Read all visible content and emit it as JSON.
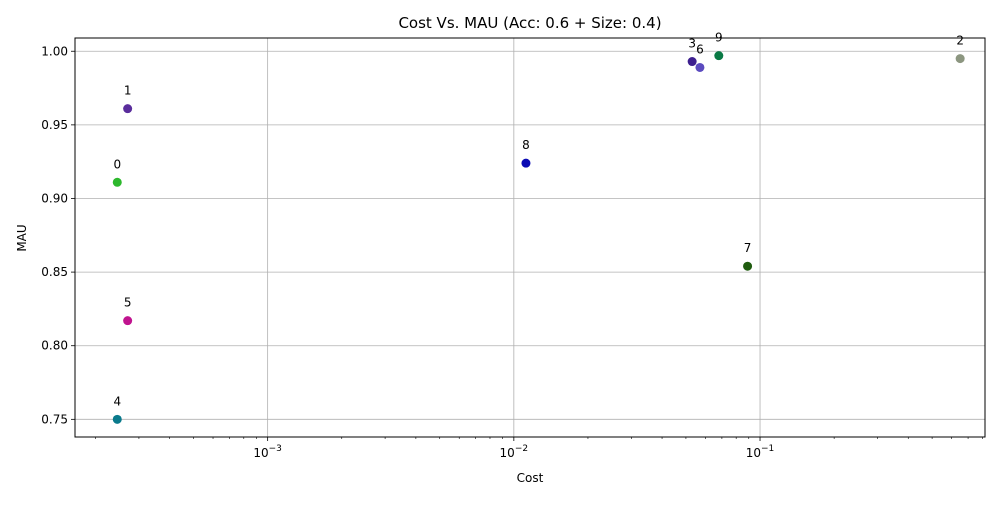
{
  "chart_data": {
    "type": "scatter",
    "title": "Cost Vs. MAU (Acc: 0.6 + Size: 0.4)",
    "xlabel": "Cost",
    "ylabel": "MAU",
    "x_scale": "log",
    "xlim": [
      0.000165,
      0.82
    ],
    "ylim": [
      0.738,
      1.009
    ],
    "grid": true,
    "x_ticks": [
      {
        "value": 0.001,
        "base": "10",
        "exp": "−3"
      },
      {
        "value": 0.01,
        "base": "10",
        "exp": "−2"
      },
      {
        "value": 0.1,
        "base": "10",
        "exp": "−1"
      }
    ],
    "y_ticks": [
      {
        "value": 0.75,
        "label": "0.75"
      },
      {
        "value": 0.8,
        "label": "0.80"
      },
      {
        "value": 0.85,
        "label": "0.85"
      },
      {
        "value": 0.9,
        "label": "0.90"
      },
      {
        "value": 0.95,
        "label": "0.95"
      },
      {
        "value": 1.0,
        "label": "1.00"
      }
    ],
    "points": [
      {
        "label": "0",
        "x": 0.000245,
        "y": 0.911,
        "color": "#2db82d"
      },
      {
        "label": "1",
        "x": 0.00027,
        "y": 0.961,
        "color": "#5a2d9c"
      },
      {
        "label": "2",
        "x": 0.65,
        "y": 0.995,
        "color": "#8c9680"
      },
      {
        "label": "3",
        "x": 0.053,
        "y": 0.993,
        "color": "#3d1f8f"
      },
      {
        "label": "4",
        "x": 0.000245,
        "y": 0.75,
        "color": "#0a7a8c"
      },
      {
        "label": "5",
        "x": 0.00027,
        "y": 0.817,
        "color": "#c0138f"
      },
      {
        "label": "6",
        "x": 0.057,
        "y": 0.989,
        "color": "#5b4bbf"
      },
      {
        "label": "7",
        "x": 0.089,
        "y": 0.854,
        "color": "#1f5c0f"
      },
      {
        "label": "8",
        "x": 0.0112,
        "y": 0.924,
        "color": "#0a0ab4"
      },
      {
        "label": "9",
        "x": 0.068,
        "y": 0.997,
        "color": "#0a7a45"
      }
    ]
  }
}
